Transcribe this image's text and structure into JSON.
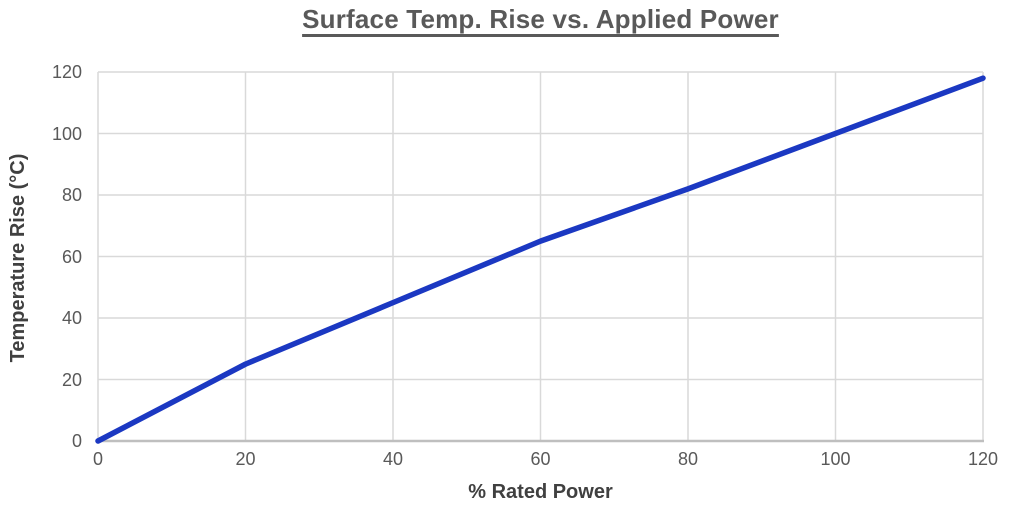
{
  "chart_data": {
    "type": "line",
    "title": "Surface Temp. Rise vs. Applied Power",
    "xlabel": "% Rated Power",
    "ylabel": "Temperature Rise (°C)",
    "x": [
      0,
      20,
      40,
      60,
      80,
      100,
      120
    ],
    "series": [
      {
        "values": [
          0,
          25,
          45,
          65,
          82,
          100,
          118
        ],
        "color": "#1B38C2"
      }
    ],
    "xlim": [
      0,
      120
    ],
    "ylim": [
      0,
      120
    ],
    "x_ticks": [
      0,
      20,
      40,
      60,
      80,
      100,
      120
    ],
    "y_ticks": [
      0,
      20,
      40,
      60,
      80,
      100,
      120
    ],
    "grid": true,
    "legend_position": "none"
  },
  "colors": {
    "line": "#1B38C2",
    "grid": "#D9D9D9",
    "axis": "#BFBFBF",
    "title_text": "#595959",
    "axis_title_text": "#404040",
    "tick_text": "#595959",
    "background": "#FFFFFF"
  }
}
